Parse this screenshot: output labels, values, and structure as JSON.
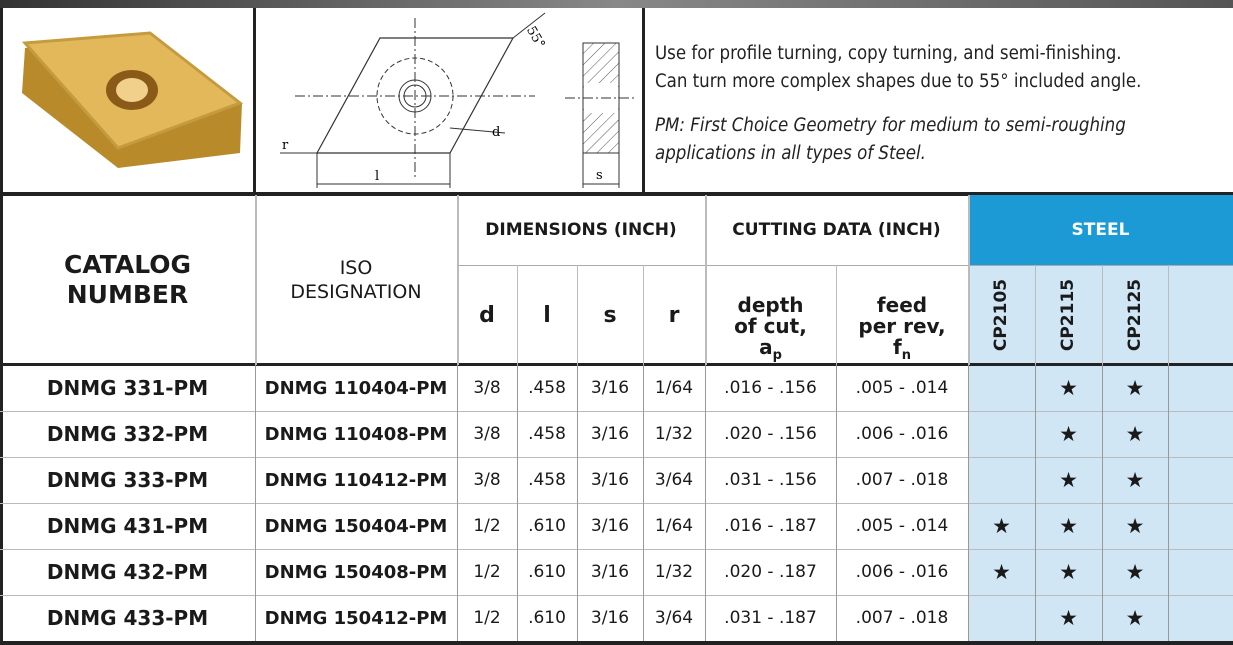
{
  "description": {
    "line1": "Use for profile turning, copy turning, and semi-finishing.",
    "line2": "Can turn more complex shapes due to 55° included angle.",
    "note1": "PM: First Choice Geometry for medium to semi-roughing",
    "note2": "applications in all types of Steel."
  },
  "diagram": {
    "angle": "55°",
    "d": "d",
    "r": "r",
    "l": "l",
    "s": "s"
  },
  "table": {
    "headers": {
      "catalog": "CATALOG NUMBER",
      "iso": "ISO DESIGNATION",
      "dimensions": "DIMENSIONS (INCH)",
      "cutting": "CUTTING DATA (INCH)",
      "steel": "STEEL",
      "d": "d",
      "l": "l",
      "s": "s",
      "r": "r",
      "depth": {
        "text": "depth of cut, a",
        "sub": "p"
      },
      "feed": {
        "text": "feed per rev, f",
        "sub": "n"
      },
      "grades": [
        "CP2105",
        "CP2115",
        "CP2125"
      ]
    },
    "rows": [
      [
        "DNMG 331-PM",
        "DNMG 110404-PM",
        "3/8",
        ".458",
        "3/16",
        "1/64",
        ".016 - .156",
        ".005 - .014",
        null,
        "★",
        "★"
      ],
      [
        "DNMG 332-PM",
        "DNMG 110408-PM",
        "3/8",
        ".458",
        "3/16",
        "1/32",
        ".020 - .156",
        ".006 - .016",
        null,
        "★",
        "★"
      ],
      [
        "DNMG 333-PM",
        "DNMG 110412-PM",
        "3/8",
        ".458",
        "3/16",
        "3/64",
        ".031 - .156",
        ".007 - .018",
        null,
        "★",
        "★"
      ],
      [
        "DNMG 431-PM",
        "DNMG 150404-PM",
        "1/2",
        ".610",
        "3/16",
        "1/64",
        ".016 - .187",
        ".005 - .014",
        "★",
        "★",
        "★"
      ],
      [
        "DNMG 432-PM",
        "DNMG 150408-PM",
        "1/2",
        ".610",
        "3/16",
        "1/32",
        ".020 - .187",
        ".006 - .016",
        "★",
        "★",
        "★"
      ],
      [
        "DNMG 433-PM",
        "DNMG 150412-PM",
        "1/2",
        ".610",
        "3/16",
        "3/64",
        ".031 - .187",
        ".007 - .018",
        null,
        "★",
        "★"
      ]
    ]
  }
}
